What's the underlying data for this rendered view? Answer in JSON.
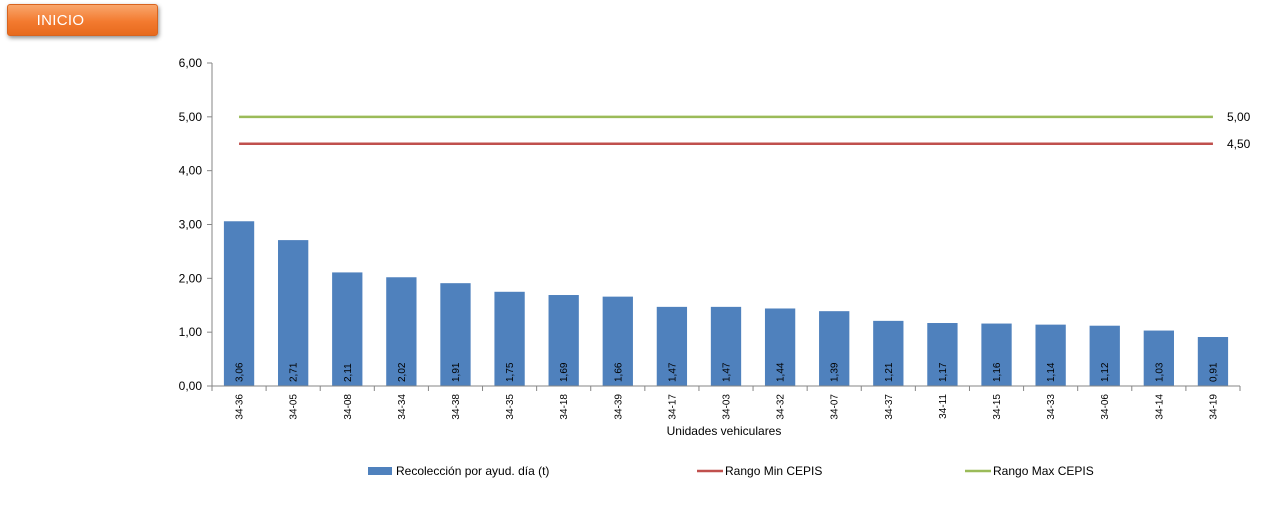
{
  "nav": {
    "inicio_label": "INICIO"
  },
  "colors": {
    "bar": "#4f81bd",
    "min_line": "#c0504d",
    "max_line": "#9bbb59",
    "button": "#f37a2f"
  },
  "chart_data": {
    "type": "bar",
    "xlabel": "Unidades vehiculares",
    "ylabel": "",
    "ylim": [
      0,
      6
    ],
    "yticks": [
      "0,00",
      "1,00",
      "2,00",
      "3,00",
      "4,00",
      "5,00",
      "6,00"
    ],
    "categories": [
      "34-36",
      "34-05",
      "34-08",
      "34-34",
      "34-38",
      "34-35",
      "34-18",
      "34-39",
      "34-17",
      "34-03",
      "34-32",
      "34-07",
      "34-37",
      "34-11",
      "34-15",
      "34-33",
      "34-06",
      "34-14",
      "34-19"
    ],
    "series": [
      {
        "name": "Recolección por ayud. día (t)",
        "type": "bar",
        "values": [
          3.06,
          2.71,
          2.11,
          2.02,
          1.91,
          1.75,
          1.69,
          1.66,
          1.47,
          1.47,
          1.44,
          1.39,
          1.21,
          1.17,
          1.16,
          1.14,
          1.12,
          1.03,
          0.91
        ],
        "labels": [
          "3,06",
          "2,71",
          "2,11",
          "2,02",
          "1,91",
          "1,75",
          "1,69",
          "1,66",
          "1,47",
          "1,47",
          "1,44",
          "1,39",
          "1,21",
          "1,17",
          "1,16",
          "1,14",
          "1,12",
          "1,03",
          "0,91"
        ]
      },
      {
        "name": "Rango Min CEPIS",
        "type": "line",
        "value": 4.5,
        "label": "4,50"
      },
      {
        "name": "Rango Max CEPIS",
        "type": "line",
        "value": 5.0,
        "label": "5,00"
      }
    ],
    "legend_position": "bottom",
    "grid": false
  }
}
